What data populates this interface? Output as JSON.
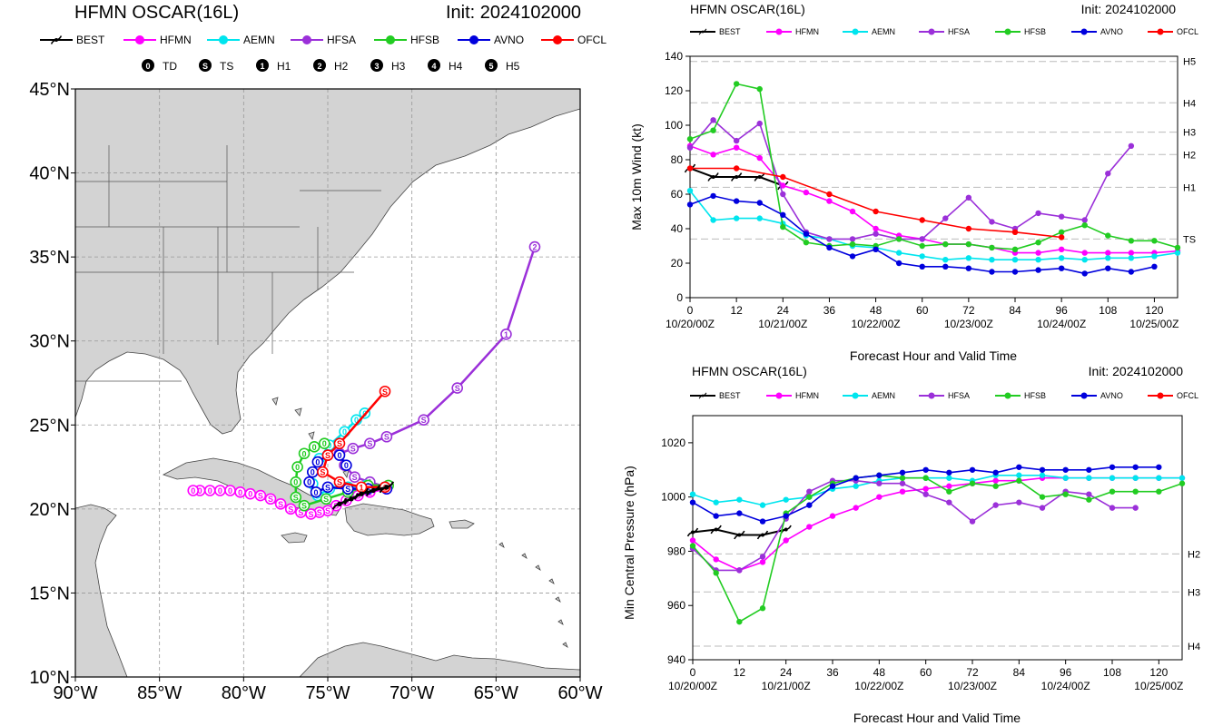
{
  "colors": {
    "BEST": "#000000",
    "HFMN": "#ff00ff",
    "AEMN": "#00e5ee",
    "HFSA": "#9b30d9",
    "HFSB": "#22cc22",
    "AVNO": "#0000dd",
    "OFCL": "#ff0000",
    "land": "#d3d3d3",
    "ocean": "#ffffff",
    "border": "#555555"
  },
  "icons": {
    "best_marker": "hurricane-symbol-icon",
    "model_marker": "filled-circle-icon",
    "intensity_markers": [
      "digit-0-td-icon",
      "letter-s-ts-icon",
      "digit-1-h1-icon",
      "digit-2-h2-icon",
      "digit-3-h3-icon",
      "digit-4-h4-icon",
      "digit-5-h5-icon"
    ]
  },
  "map": {
    "title": "HFMN OSCAR(16L)",
    "init": "Init: 2024102000",
    "legend": [
      "BEST",
      "HFMN",
      "AEMN",
      "HFSA",
      "HFSB",
      "AVNO",
      "OFCL"
    ],
    "intensity_legend": [
      {
        "glyph": "0",
        "label": "TD"
      },
      {
        "glyph": "S",
        "label": "TS"
      },
      {
        "glyph": "1",
        "label": "H1"
      },
      {
        "glyph": "2",
        "label": "H2"
      },
      {
        "glyph": "3",
        "label": "H3"
      },
      {
        "glyph": "4",
        "label": "H4"
      },
      {
        "glyph": "5",
        "label": "H5"
      }
    ],
    "lat_labels": [
      "45°N",
      "40°N",
      "35°N",
      "30°N",
      "25°N",
      "20°N",
      "15°N",
      "10°N"
    ],
    "lon_labels": [
      "90°W",
      "85°W",
      "80°W",
      "75°W",
      "70°W",
      "65°W",
      "60°W"
    ],
    "lon_range": [
      -90,
      -60
    ],
    "lat_range": [
      10,
      45
    ],
    "grid": "dashed"
  },
  "wind": {
    "title": "HFMN OSCAR(16L)",
    "init": "Init: 2024102000",
    "legend": [
      "BEST",
      "HFMN",
      "AEMN",
      "HFSA",
      "HFSB",
      "AVNO",
      "OFCL"
    ],
    "ylabel": "Max 10m Wind (kt)",
    "xlabel": "Forecast Hour and Valid Time",
    "yticks": [
      "0",
      "20",
      "40",
      "60",
      "80",
      "100",
      "120",
      "140"
    ],
    "xticks": [
      "0",
      "12",
      "24",
      "36",
      "48",
      "60",
      "72",
      "84",
      "96",
      "108",
      "120"
    ],
    "dates": [
      "10/20/00Z",
      "10/21/00Z",
      "10/22/00Z",
      "10/23/00Z",
      "10/24/00Z",
      "10/25/00Z"
    ],
    "cat_labels": [
      "H5",
      "H4",
      "H3",
      "H2",
      "H1",
      "TS"
    ]
  },
  "pres": {
    "title": "HFMN OSCAR(16L)",
    "init": "Init: 2024102000",
    "legend": [
      "BEST",
      "HFMN",
      "AEMN",
      "HFSA",
      "HFSB",
      "AVNO",
      "OFCL"
    ],
    "ylabel": "Min Central Pressure (hPa)",
    "xlabel": "Forecast Hour and Valid Time",
    "yticks": [
      "940",
      "960",
      "980",
      "1000",
      "1020"
    ],
    "xticks": [
      "0",
      "12",
      "24",
      "36",
      "48",
      "60",
      "72",
      "84",
      "96",
      "108",
      "120"
    ],
    "dates": [
      "10/20/00Z",
      "10/21/00Z",
      "10/22/00Z",
      "10/23/00Z",
      "10/24/00Z",
      "10/25/00Z"
    ],
    "cat_labels": [
      "H2",
      "H3",
      "H4"
    ]
  },
  "chart_data": [
    {
      "type": "line",
      "title": "HFMN OSCAR(16L)",
      "xlabel": "Forecast Hour and Valid Time",
      "ylabel": "Max 10m Wind (kt)",
      "xlim": [
        0,
        126
      ],
      "ylim": [
        0,
        140
      ],
      "category_thresholds": [
        {
          "name": "H5",
          "value": 137
        },
        {
          "name": "H4",
          "value": 113
        },
        {
          "name": "H3",
          "value": 96
        },
        {
          "name": "H2",
          "value": 83
        },
        {
          "name": "H1",
          "value": 64
        },
        {
          "name": "TS",
          "value": 34
        }
      ],
      "series": [
        {
          "name": "BEST",
          "x": [
            0,
            6,
            12,
            18,
            24
          ],
          "values": [
            75,
            70,
            70,
            70,
            65
          ]
        },
        {
          "name": "HFMN",
          "x": [
            0,
            6,
            12,
            18,
            24,
            30,
            36,
            42,
            48,
            54,
            60,
            66,
            72,
            78,
            84,
            90,
            96,
            102,
            108,
            114,
            120,
            126
          ],
          "values": [
            88,
            83,
            87,
            81,
            65,
            61,
            56,
            50,
            40,
            36,
            34,
            31,
            31,
            29,
            26,
            26,
            28,
            26,
            26,
            26,
            26,
            27
          ]
        },
        {
          "name": "AEMN",
          "x": [
            0,
            6,
            12,
            18,
            24,
            30,
            36,
            42,
            48,
            54,
            60,
            66,
            72,
            78,
            84,
            90,
            96,
            102,
            108,
            114,
            120,
            126
          ],
          "values": [
            62,
            45,
            46,
            46,
            43,
            36,
            34,
            30,
            29,
            26,
            24,
            22,
            23,
            22,
            22,
            22,
            23,
            22,
            23,
            23,
            24,
            26
          ]
        },
        {
          "name": "HFSA",
          "x": [
            0,
            6,
            12,
            18,
            24,
            30,
            36,
            42,
            48,
            54,
            60,
            66,
            72,
            78,
            84,
            90,
            96,
            102,
            108,
            114
          ],
          "values": [
            87,
            103,
            91,
            101,
            60,
            38,
            34,
            34,
            37,
            34,
            34,
            46,
            58,
            44,
            40,
            49,
            47,
            45,
            72,
            88
          ]
        },
        {
          "name": "HFSB",
          "x": [
            0,
            6,
            12,
            18,
            24,
            30,
            36,
            42,
            48,
            54,
            60,
            66,
            72,
            78,
            84,
            90,
            96,
            102,
            108,
            114,
            120,
            126
          ],
          "values": [
            92,
            97,
            124,
            121,
            41,
            32,
            30,
            31,
            30,
            34,
            30,
            31,
            31,
            29,
            28,
            32,
            38,
            42,
            36,
            33,
            33,
            29
          ]
        },
        {
          "name": "AVNO",
          "x": [
            0,
            6,
            12,
            18,
            24,
            30,
            36,
            42,
            48,
            54,
            60,
            66,
            72,
            78,
            84,
            90,
            96,
            102,
            108,
            114,
            120
          ],
          "values": [
            54,
            59,
            56,
            55,
            48,
            37,
            29,
            24,
            28,
            20,
            18,
            18,
            17,
            15,
            15,
            16,
            17,
            14,
            17,
            15,
            18
          ]
        },
        {
          "name": "OFCL",
          "x": [
            0,
            12,
            24,
            36,
            48,
            60,
            72,
            84,
            96
          ],
          "values": [
            75,
            75,
            70,
            60,
            50,
            45,
            40,
            38,
            35
          ]
        }
      ]
    },
    {
      "type": "line",
      "title": "HFMN OSCAR(16L)",
      "xlabel": "Forecast Hour and Valid Time",
      "ylabel": "Min Central Pressure (hPa)",
      "xlim": [
        0,
        126
      ],
      "ylim": [
        940,
        1030
      ],
      "category_thresholds": [
        {
          "name": "H2",
          "value": 979
        },
        {
          "name": "H3",
          "value": 965
        },
        {
          "name": "H4",
          "value": 945
        }
      ],
      "series": [
        {
          "name": "BEST",
          "x": [
            0,
            6,
            12,
            18,
            24
          ],
          "values": [
            987,
            988,
            986,
            986,
            988
          ]
        },
        {
          "name": "HFMN",
          "x": [
            0,
            6,
            12,
            18,
            24,
            30,
            36,
            42,
            48,
            54,
            60,
            66,
            72,
            78,
            84,
            90,
            96,
            102,
            108,
            114,
            120,
            126
          ],
          "values": [
            984,
            977,
            973,
            976,
            984,
            989,
            993,
            996,
            1000,
            1002,
            1003,
            1004,
            1005,
            1006,
            1006,
            1007,
            1007,
            1007,
            1007,
            1007,
            1007,
            1007
          ]
        },
        {
          "name": "AEMN",
          "x": [
            0,
            6,
            12,
            18,
            24,
            30,
            36,
            42,
            48,
            54,
            60,
            66,
            72,
            78,
            84,
            90,
            96,
            102,
            108,
            114,
            120,
            126
          ],
          "values": [
            1001,
            998,
            999,
            997,
            999,
            1000,
            1003,
            1004,
            1006,
            1007,
            1007,
            1007,
            1006,
            1008,
            1008,
            1008,
            1007,
            1007,
            1007,
            1007,
            1007,
            1007
          ]
        },
        {
          "name": "HFSA",
          "x": [
            0,
            6,
            12,
            18,
            24,
            30,
            36,
            42,
            48,
            54,
            60,
            66,
            72,
            78,
            84,
            90,
            96,
            102,
            108,
            114
          ],
          "values": [
            981,
            973,
            973,
            978,
            992,
            1002,
            1006,
            1006,
            1005,
            1005,
            1001,
            998,
            991,
            997,
            998,
            996,
            1002,
            1001,
            996,
            996
          ]
        },
        {
          "name": "HFSB",
          "x": [
            0,
            6,
            12,
            18,
            24,
            30,
            36,
            42,
            48,
            54,
            60,
            66,
            72,
            78,
            84,
            90,
            96,
            102,
            108,
            114,
            120,
            126
          ],
          "values": [
            982,
            972,
            954,
            959,
            994,
            1000,
            1005,
            1007,
            1008,
            1007,
            1007,
            1002,
            1005,
            1004,
            1006,
            1000,
            1001,
            999,
            1002,
            1002,
            1002,
            1005
          ]
        },
        {
          "name": "AVNO",
          "x": [
            0,
            6,
            12,
            18,
            24,
            30,
            36,
            42,
            48,
            54,
            60,
            66,
            72,
            78,
            84,
            90,
            96,
            102,
            108,
            114,
            120
          ],
          "values": [
            998,
            993,
            994,
            991,
            993,
            997,
            1004,
            1007,
            1008,
            1009,
            1010,
            1009,
            1010,
            1009,
            1011,
            1010,
            1010,
            1010,
            1011,
            1011,
            1011
          ]
        },
        {
          "name": "OFCL",
          "x": [],
          "values": []
        }
      ]
    }
  ],
  "tracks": [
    {
      "name": "HFSA",
      "points": [
        [
          -71.5,
          21.3
        ],
        [
          -72.5,
          21.6
        ],
        [
          -73.4,
          21.9
        ],
        [
          -74.0,
          22.6
        ],
        [
          -74.3,
          23.3
        ],
        [
          -73.5,
          23.6
        ],
        [
          -72.5,
          23.9
        ],
        [
          -71.5,
          24.3
        ],
        [
          -69.3,
          25.3
        ],
        [
          -67.3,
          27.2
        ],
        [
          -64.4,
          30.4
        ],
        [
          -62.7,
          35.6
        ]
      ],
      "labels": [
        "1",
        "1",
        "S",
        "S",
        "S",
        "S",
        "S",
        "S",
        "S",
        "S",
        "1",
        "2"
      ]
    },
    {
      "name": "HFMN",
      "points": [
        [
          -71.5,
          21.2
        ],
        [
          -72.5,
          21.0
        ],
        [
          -73.2,
          20.8
        ],
        [
          -73.9,
          20.5
        ],
        [
          -74.5,
          20.2
        ],
        [
          -75.0,
          19.9
        ],
        [
          -75.5,
          19.8
        ],
        [
          -76.0,
          19.7
        ],
        [
          -76.6,
          19.8
        ],
        [
          -77.2,
          20.0
        ],
        [
          -77.8,
          20.3
        ],
        [
          -78.4,
          20.6
        ],
        [
          -79.0,
          20.8
        ],
        [
          -79.6,
          20.9
        ],
        [
          -80.2,
          21.0
        ],
        [
          -80.8,
          21.1
        ],
        [
          -81.4,
          21.1
        ],
        [
          -82.0,
          21.1
        ],
        [
          -82.6,
          21.1
        ],
        [
          -83.0,
          21.1
        ]
      ],
      "labels": [
        "1",
        "1",
        "S",
        "S",
        "S",
        "S",
        "S",
        "S",
        "S",
        "S",
        "S",
        "S",
        "S",
        "0",
        "0",
        "0",
        "0",
        "0",
        "0",
        "0"
      ]
    },
    {
      "name": "AEMN",
      "points": [
        [
          -71.6,
          21.3
        ],
        [
          -72.7,
          21.4
        ],
        [
          -73.8,
          21.3
        ],
        [
          -74.9,
          21.2
        ],
        [
          -75.6,
          20.8
        ],
        [
          -75.9,
          21.5
        ],
        [
          -75.9,
          22.2
        ],
        [
          -75.5,
          23.0
        ],
        [
          -74.9,
          23.8
        ],
        [
          -74.0,
          24.6
        ],
        [
          -73.3,
          25.3
        ],
        [
          -72.8,
          25.7
        ]
      ],
      "labels": [
        "1",
        "S",
        "S",
        "S",
        "S",
        "0",
        "0",
        "0",
        "0",
        "0",
        "0",
        "0"
      ]
    },
    {
      "name": "HFSB",
      "points": [
        [
          -71.4,
          21.4
        ],
        [
          -72.6,
          21.4
        ],
        [
          -73.8,
          21.0
        ],
        [
          -75.1,
          20.6
        ],
        [
          -76.4,
          20.2
        ],
        [
          -76.9,
          20.7
        ],
        [
          -76.9,
          21.6
        ],
        [
          -76.8,
          22.5
        ],
        [
          -76.4,
          23.3
        ],
        [
          -75.8,
          23.7
        ],
        [
          -75.2,
          23.9
        ]
      ],
      "labels": [
        "1",
        "1",
        "S",
        "S",
        "S",
        "S",
        "0",
        "0",
        "0",
        "0",
        "0"
      ]
    },
    {
      "name": "AVNO",
      "points": [
        [
          -71.5,
          21.2
        ],
        [
          -72.6,
          21.2
        ],
        [
          -73.8,
          21.2
        ],
        [
          -75.0,
          21.3
        ],
        [
          -75.7,
          21.0
        ],
        [
          -76.1,
          21.6
        ],
        [
          -75.9,
          22.2
        ],
        [
          -75.6,
          22.8
        ],
        [
          -75.0,
          23.2
        ],
        [
          -74.3,
          23.2
        ],
        [
          -73.9,
          22.6
        ]
      ],
      "labels": [
        "1",
        "S",
        "S",
        "S",
        "0",
        "0",
        "0",
        "0",
        "0",
        "0",
        "0"
      ]
    },
    {
      "name": "OFCL",
      "points": [
        [
          -71.6,
          21.3
        ],
        [
          -73.0,
          21.3
        ],
        [
          -74.3,
          21.6
        ],
        [
          -75.3,
          22.2
        ],
        [
          -75.0,
          23.2
        ],
        [
          -74.3,
          23.9
        ],
        [
          -71.6,
          27.0
        ]
      ],
      "labels": [
        "1",
        "1",
        "S",
        "S",
        "S",
        "S",
        "S"
      ]
    },
    {
      "name": "BEST",
      "points": [
        [
          -71.5,
          21.3
        ],
        [
          -72.3,
          21.1
        ],
        [
          -73.0,
          20.9
        ],
        [
          -73.6,
          20.6
        ],
        [
          -74.3,
          20.3
        ]
      ],
      "labels": [
        "1",
        "1",
        "1",
        "1",
        "1"
      ]
    }
  ]
}
